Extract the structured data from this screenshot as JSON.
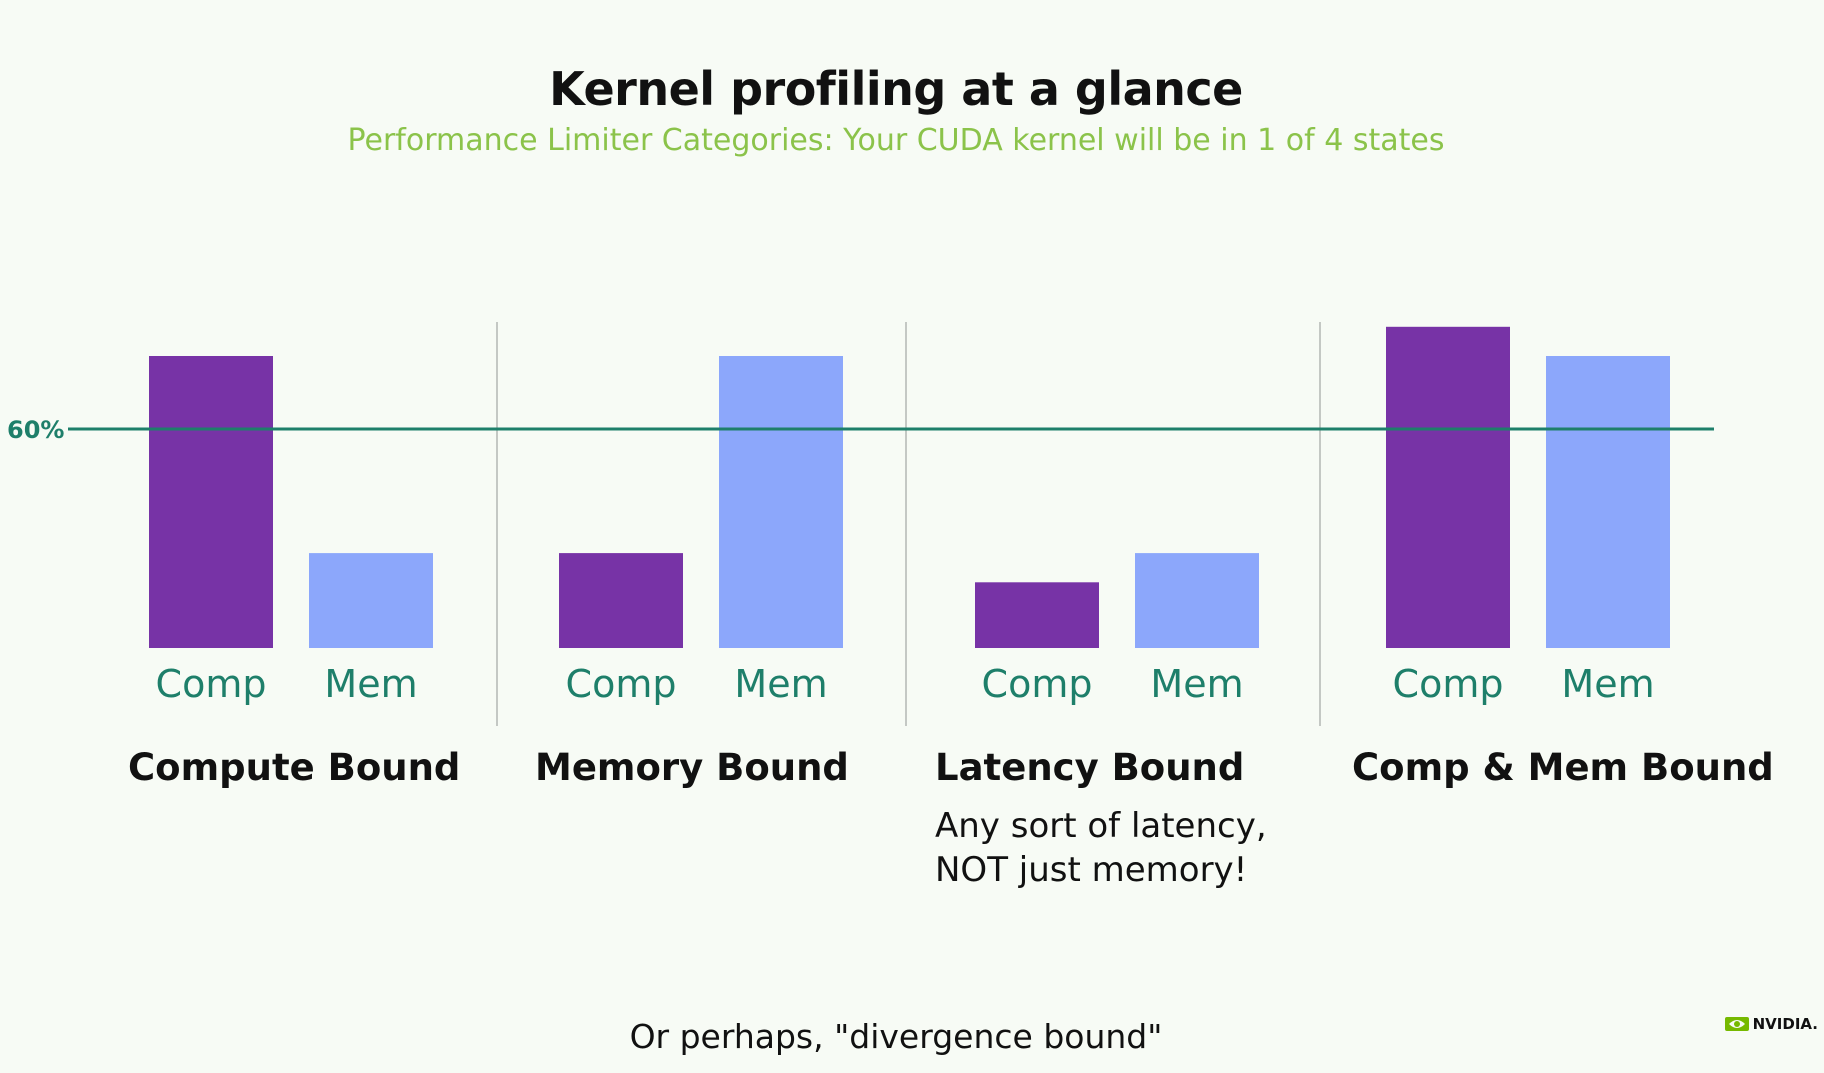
{
  "title": "Kernel profiling at a glance",
  "subtitle": "Performance Limiter Categories: Your CUDA kernel will be in 1 of 4 states",
  "chart_data": {
    "type": "bar",
    "categories": [
      "Comp",
      "Mem"
    ],
    "groups": [
      {
        "name": "Compute Bound",
        "values": [
          80,
          26
        ]
      },
      {
        "name": "Memory Bound",
        "values": [
          26,
          80
        ]
      },
      {
        "name": "Latency Bound",
        "values": [
          18,
          26
        ]
      },
      {
        "name": "Comp & Mem Bound",
        "values": [
          88,
          80
        ]
      }
    ],
    "threshold": {
      "label": "60%",
      "value": 60
    },
    "ylim": [
      0,
      100
    ],
    "colors": {
      "Comp": "#7733a6",
      "Mem": "#8ca7fb",
      "threshold": "#1e7f6a"
    }
  },
  "latency_note_line1": "Any sort of latency,",
  "latency_note_line2": "NOT just memory!",
  "footer": "Or perhaps, \"divergence bound\"",
  "logo_text": "NVIDIA."
}
